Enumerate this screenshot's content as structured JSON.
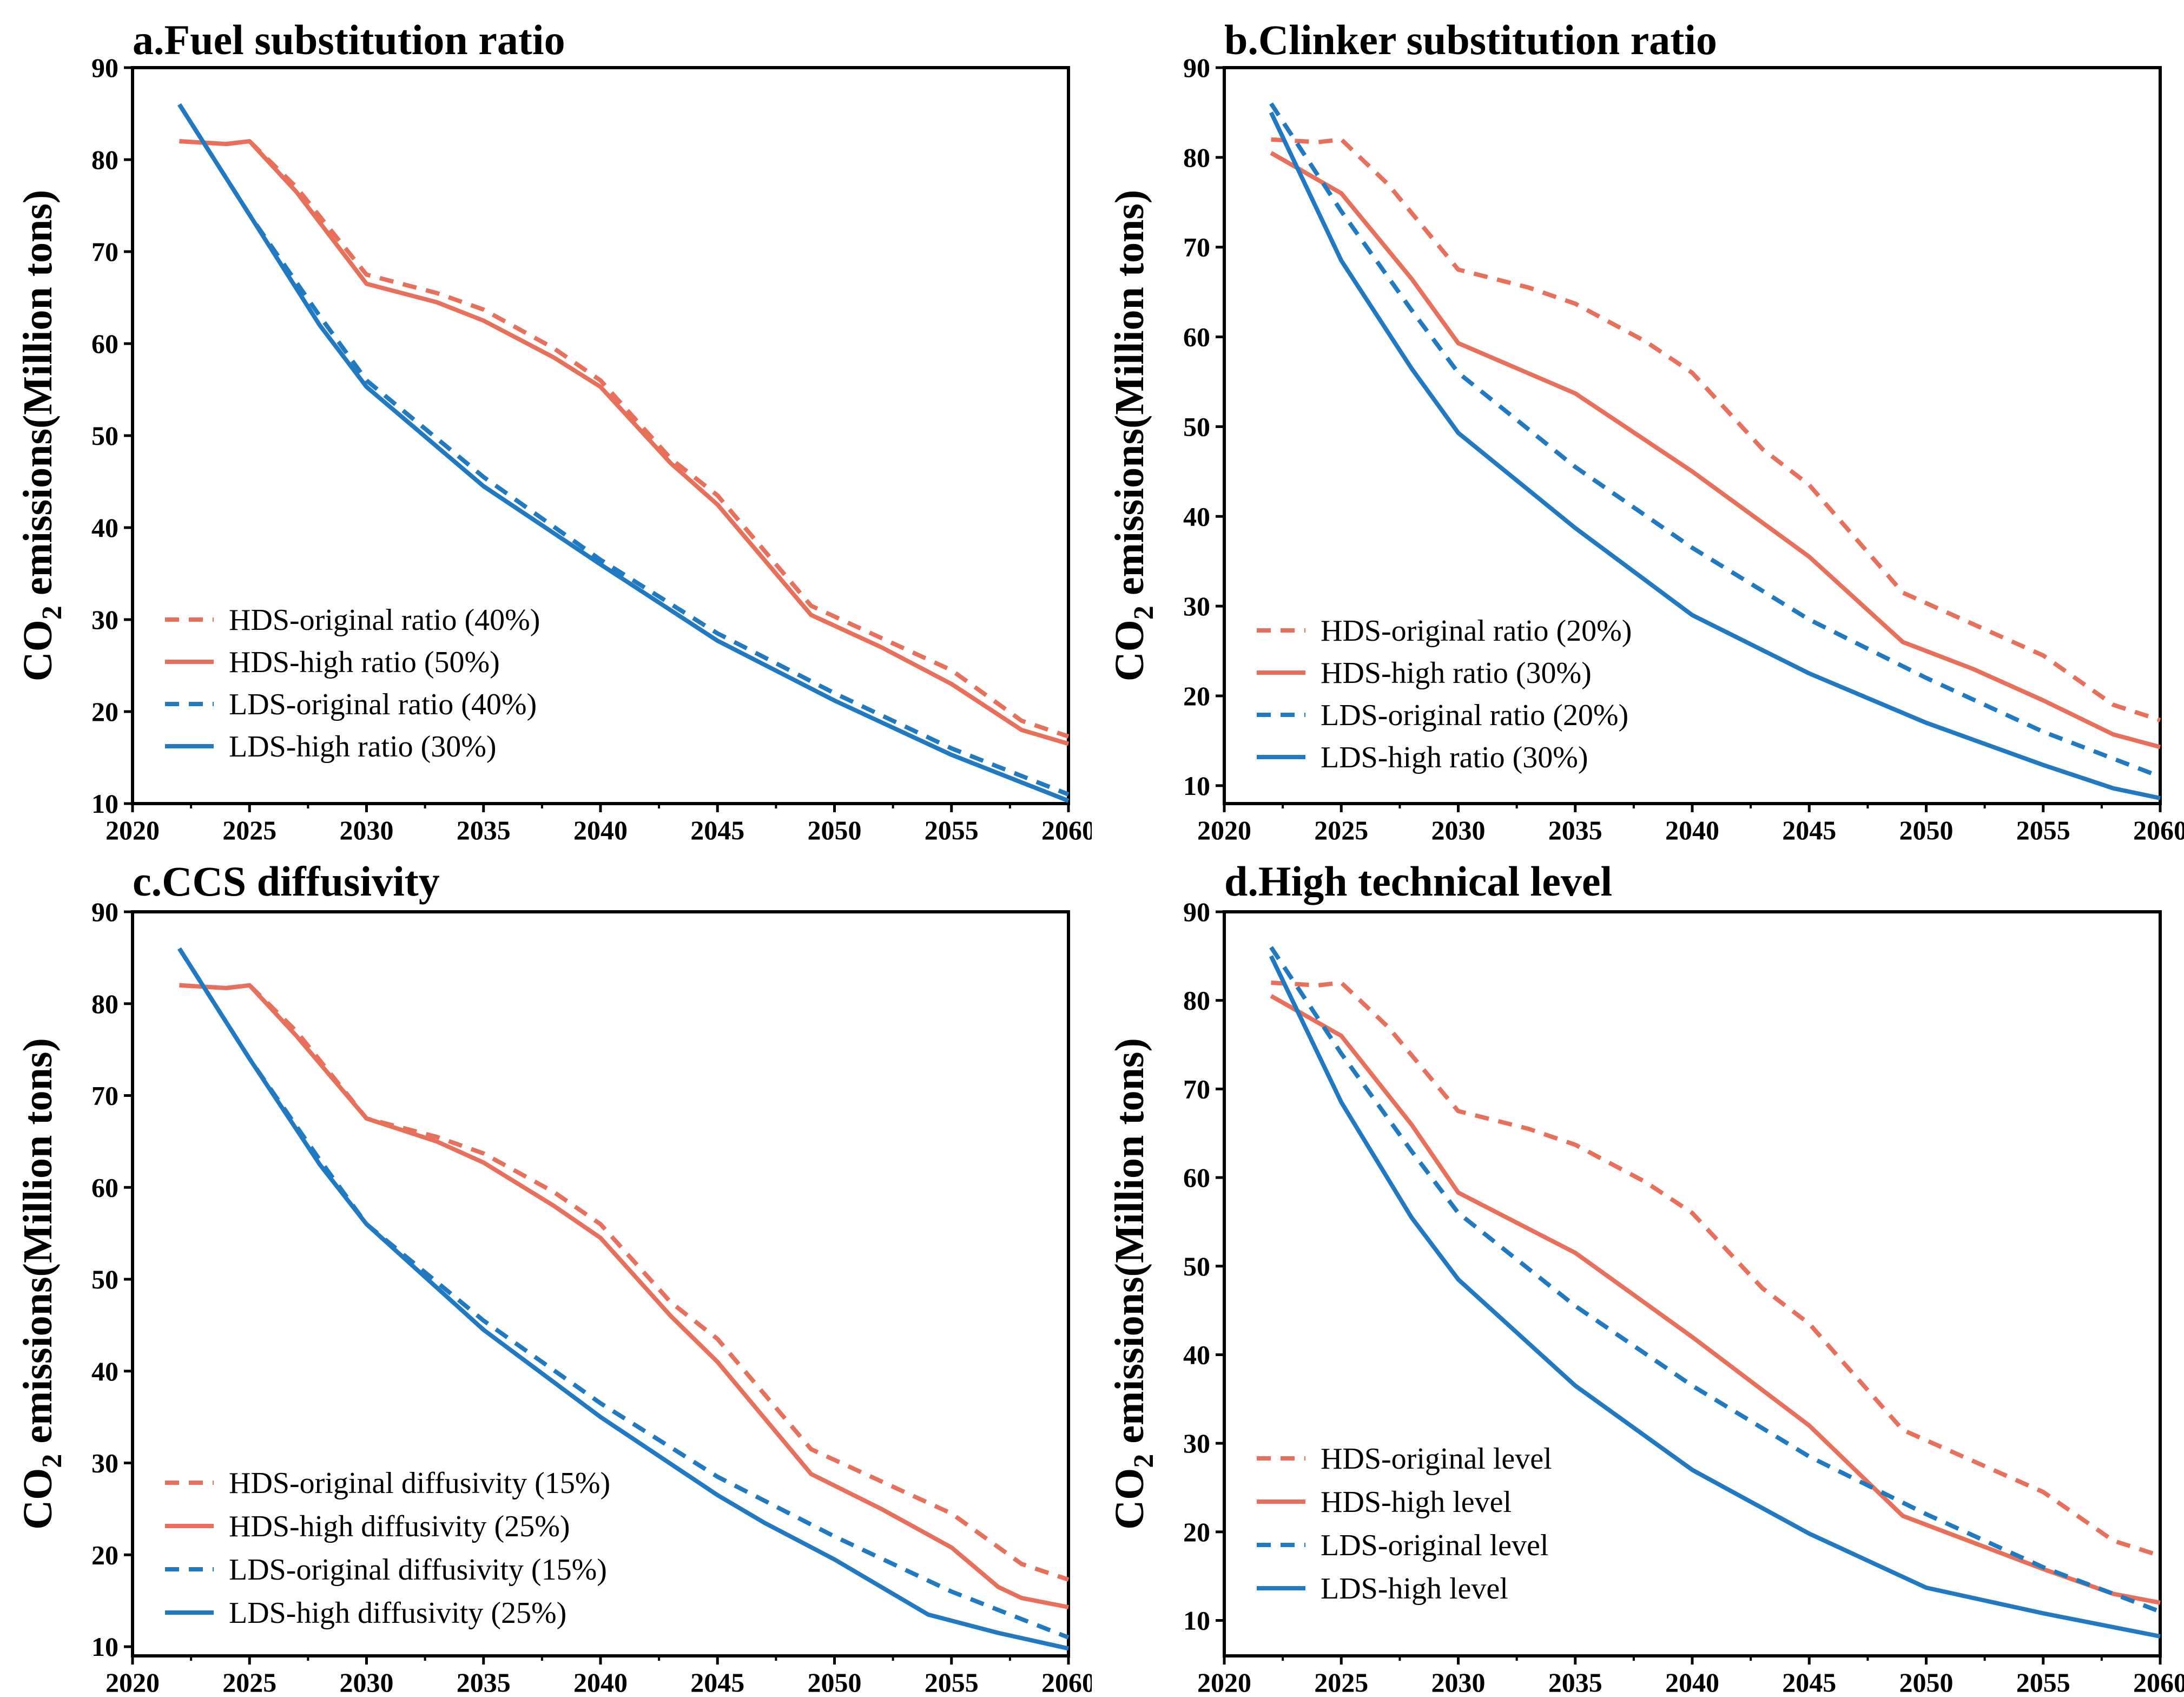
{
  "y_axis_label": "CO",
  "y_axis_label_sub": "2",
  "y_axis_label_rest": " emissions(Million tons)",
  "colors": {
    "HDS": "#e8705a",
    "LDS": "#1f7ac2"
  },
  "chart_data": [
    {
      "type": "line",
      "title": "a.Fuel substitution ratio",
      "xlabel": "",
      "ylabel": "CO2 emissions(Million tons)",
      "xlim": [
        2020,
        2060
      ],
      "ylim": [
        10,
        90
      ],
      "xticks": [
        2020,
        2025,
        2030,
        2035,
        2040,
        2045,
        2050,
        2055,
        2060
      ],
      "yticks": [
        10,
        20,
        30,
        40,
        50,
        60,
        70,
        80,
        90
      ],
      "legend_position": "bottom-left",
      "series": [
        {
          "name": "HDS-original ratio (40%)",
          "color": "#e8705a",
          "style": "dashed",
          "x": [
            2022,
            2024,
            2025,
            2027,
            2030,
            2033,
            2035,
            2038,
            2040,
            2043,
            2045,
            2049,
            2052,
            2055,
            2058,
            2060
          ],
          "y": [
            82,
            81.7,
            82,
            77,
            67.5,
            65.5,
            63.7,
            59.5,
            56,
            47.5,
            43.5,
            31.5,
            28,
            24.5,
            19,
            17.3
          ]
        },
        {
          "name": "HDS-high ratio (50%)",
          "color": "#e8705a",
          "style": "solid",
          "x": [
            2022,
            2024,
            2025,
            2027,
            2030,
            2033,
            2035,
            2038,
            2040,
            2043,
            2045,
            2049,
            2052,
            2055,
            2058,
            2060
          ],
          "y": [
            82,
            81.7,
            82,
            76.5,
            66.5,
            64.5,
            62.5,
            58.5,
            55.3,
            47,
            42.5,
            30.5,
            27,
            23,
            18,
            16.5
          ]
        },
        {
          "name": "LDS-original ratio (40%)",
          "color": "#1f7ac2",
          "style": "dashed",
          "x": [
            2022,
            2025,
            2028,
            2030,
            2035,
            2040,
            2045,
            2050,
            2055,
            2060
          ],
          "y": [
            86,
            74,
            63,
            56,
            45.5,
            36.5,
            28.5,
            22,
            16,
            11
          ]
        },
        {
          "name": "LDS-high ratio (30%)",
          "color": "#1f7ac2",
          "style": "solid",
          "x": [
            2022,
            2025,
            2028,
            2030,
            2035,
            2040,
            2045,
            2050,
            2055,
            2060
          ],
          "y": [
            86,
            74,
            62,
            55.3,
            44.5,
            36,
            27.7,
            21.2,
            15.3,
            10.3
          ]
        }
      ]
    },
    {
      "type": "line",
      "title": "b.Clinker substitution ratio",
      "xlabel": "",
      "ylabel": "CO2 emissions(Million tons)",
      "xlim": [
        2020,
        2060
      ],
      "ylim": [
        8,
        90
      ],
      "xticks": [
        2020,
        2025,
        2030,
        2035,
        2040,
        2045,
        2050,
        2055,
        2060
      ],
      "yticks": [
        10,
        20,
        30,
        40,
        50,
        60,
        70,
        80,
        90
      ],
      "legend_position": "bottom-left",
      "series": [
        {
          "name": "HDS-original ratio (20%)",
          "color": "#e8705a",
          "style": "dashed",
          "x": [
            2022,
            2024,
            2025,
            2027,
            2030,
            2033,
            2035,
            2038,
            2040,
            2043,
            2045,
            2049,
            2052,
            2055,
            2058,
            2060
          ],
          "y": [
            82,
            81.7,
            82,
            77,
            67.5,
            65.5,
            63.7,
            59.5,
            56,
            47.5,
            43.5,
            31.5,
            28,
            24.5,
            19,
            17.3
          ]
        },
        {
          "name": "HDS-high ratio (30%)",
          "color": "#e8705a",
          "style": "solid",
          "x": [
            2022,
            2025,
            2028,
            2030,
            2035,
            2040,
            2045,
            2049,
            2052,
            2055,
            2058,
            2060
          ],
          "y": [
            80.5,
            76,
            66.5,
            59.3,
            53.7,
            45,
            35.5,
            26,
            23,
            19.5,
            15.7,
            14.3
          ]
        },
        {
          "name": "LDS-original ratio (20%)",
          "color": "#1f7ac2",
          "style": "dashed",
          "x": [
            2022,
            2025,
            2028,
            2030,
            2035,
            2040,
            2045,
            2050,
            2055,
            2060
          ],
          "y": [
            86,
            74,
            63,
            56,
            45.5,
            36.5,
            28.5,
            22,
            16,
            11
          ]
        },
        {
          "name": "LDS-high ratio (30%)",
          "color": "#1f7ac2",
          "style": "solid",
          "x": [
            2022,
            2025,
            2028,
            2030,
            2035,
            2040,
            2045,
            2050,
            2055,
            2058,
            2060
          ],
          "y": [
            85,
            68.5,
            56.5,
            49.3,
            38.7,
            29,
            22.5,
            17,
            12.3,
            9.7,
            8.6
          ]
        }
      ]
    },
    {
      "type": "line",
      "title": "c.CCS diffusivity",
      "xlabel": "",
      "ylabel": "CO2 emissions(Million tons)",
      "xlim": [
        2020,
        2060
      ],
      "ylim": [
        9,
        90
      ],
      "xticks": [
        2020,
        2025,
        2030,
        2035,
        2040,
        2045,
        2050,
        2055,
        2060
      ],
      "yticks": [
        10,
        20,
        30,
        40,
        50,
        60,
        70,
        80,
        90
      ],
      "legend_position": "bottom-left",
      "series": [
        {
          "name": "HDS-original diffusivity (15%)",
          "color": "#e8705a",
          "style": "dashed",
          "x": [
            2022,
            2024,
            2025,
            2027,
            2030,
            2033,
            2035,
            2038,
            2040,
            2043,
            2045,
            2049,
            2052,
            2055,
            2058,
            2060
          ],
          "y": [
            82,
            81.7,
            82,
            77,
            67.5,
            65.5,
            63.7,
            59.5,
            56,
            47.5,
            43.5,
            31.5,
            28,
            24.5,
            19,
            17.3
          ]
        },
        {
          "name": "HDS-high diffusivity (25%)",
          "color": "#e8705a",
          "style": "solid",
          "x": [
            2022,
            2024,
            2025,
            2027,
            2030,
            2033,
            2035,
            2038,
            2040,
            2043,
            2045,
            2049,
            2052,
            2055,
            2057,
            2058,
            2060
          ],
          "y": [
            82,
            81.7,
            82,
            76.5,
            67.5,
            65,
            62.7,
            58,
            54.5,
            46,
            41,
            28.8,
            25,
            20.8,
            16.5,
            15.3,
            14.3
          ]
        },
        {
          "name": "LDS-original diffusivity (15%)",
          "color": "#1f7ac2",
          "style": "dashed",
          "x": [
            2022,
            2025,
            2028,
            2030,
            2035,
            2040,
            2045,
            2050,
            2055,
            2060
          ],
          "y": [
            86,
            74,
            63,
            56,
            45.5,
            36.5,
            28.5,
            22,
            16,
            11
          ]
        },
        {
          "name": "LDS-high diffusivity (25%)",
          "color": "#1f7ac2",
          "style": "solid",
          "x": [
            2022,
            2025,
            2028,
            2030,
            2035,
            2040,
            2045,
            2047,
            2050,
            2054,
            2057,
            2060
          ],
          "y": [
            86,
            74,
            62.5,
            56,
            44.5,
            35,
            26.5,
            23.5,
            19.5,
            13.5,
            11.5,
            9.8
          ]
        }
      ]
    },
    {
      "type": "line",
      "title": "d.High technical level",
      "xlabel": "",
      "ylabel": "CO2 emissions(Million tons)",
      "xlim": [
        2020,
        2060
      ],
      "ylim": [
        6,
        90
      ],
      "xticks": [
        2020,
        2025,
        2030,
        2035,
        2040,
        2045,
        2050,
        2055,
        2060
      ],
      "yticks": [
        10,
        20,
        30,
        40,
        50,
        60,
        70,
        80,
        90
      ],
      "legend_position": "bottom-left",
      "series": [
        {
          "name": "HDS-original level",
          "color": "#e8705a",
          "style": "dashed",
          "x": [
            2022,
            2024,
            2025,
            2027,
            2030,
            2033,
            2035,
            2038,
            2040,
            2043,
            2045,
            2049,
            2052,
            2055,
            2058,
            2060
          ],
          "y": [
            82,
            81.7,
            82,
            77,
            67.5,
            65.5,
            63.7,
            59.5,
            56,
            47.5,
            43.5,
            31.5,
            28,
            24.5,
            19,
            17.3
          ]
        },
        {
          "name": "HDS-high level",
          "color": "#e8705a",
          "style": "solid",
          "x": [
            2022,
            2025,
            2028,
            2030,
            2035,
            2040,
            2045,
            2049,
            2052,
            2055,
            2058,
            2060
          ],
          "y": [
            80.5,
            76,
            66,
            58.3,
            51.5,
            42,
            32,
            21.8,
            18.8,
            15.8,
            13,
            12
          ]
        },
        {
          "name": "LDS-original level",
          "color": "#1f7ac2",
          "style": "dashed",
          "x": [
            2022,
            2025,
            2028,
            2030,
            2035,
            2040,
            2045,
            2050,
            2055,
            2060
          ],
          "y": [
            86,
            74,
            63,
            56,
            45.5,
            36.5,
            28.5,
            22,
            16,
            11
          ]
        },
        {
          "name": "LDS-high level",
          "color": "#1f7ac2",
          "style": "solid",
          "x": [
            2022,
            2025,
            2028,
            2030,
            2035,
            2040,
            2045,
            2050,
            2055,
            2060
          ],
          "y": [
            85,
            68.5,
            55.5,
            48.5,
            36.5,
            27,
            19.8,
            13.7,
            10.8,
            8.2
          ]
        }
      ]
    }
  ]
}
